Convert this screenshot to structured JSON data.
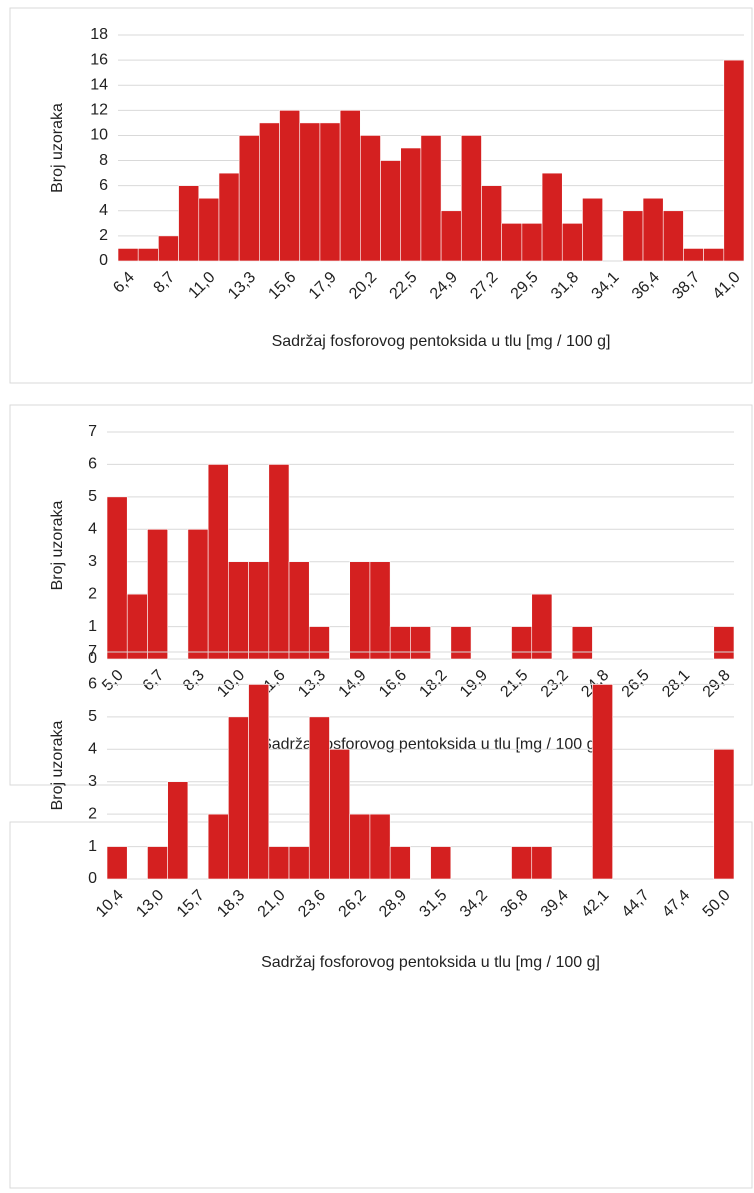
{
  "chart_data": [
    {
      "type": "bar",
      "xlabel": "Sadržaj fosforovog pentoksida u tlu [mg / 100 g]",
      "ylabel": "Broj uzoraka",
      "categories": [
        "6,4",
        null,
        "8,7",
        null,
        "11,0",
        null,
        "13,3",
        null,
        "15,6",
        null,
        "17,9",
        null,
        "20,2",
        null,
        "22,5",
        null,
        "24,9",
        null,
        "27,2",
        null,
        "29,5",
        null,
        "31,8",
        null,
        "34,1",
        null,
        "36,4",
        null,
        "38,7",
        null,
        "41,0"
      ],
      "values": [
        1,
        1,
        2,
        6,
        5,
        7,
        10,
        11,
        12,
        11,
        11,
        12,
        10,
        8,
        9,
        10,
        4,
        10,
        6,
        3,
        3,
        7,
        3,
        5,
        0,
        4,
        5,
        4,
        1,
        1,
        16
      ],
      "color": "#d42020",
      "ylim": [
        0,
        18
      ],
      "yticks": [
        0,
        2,
        4,
        6,
        8,
        10,
        12,
        14,
        16,
        18
      ],
      "grid": true
    },
    {
      "type": "bar",
      "xlabel": "Sadržaj fosforovog pentoksida u tlu [mg / 100 g]",
      "ylabel": "Broj uzoraka",
      "categories": [
        "5,0",
        null,
        "6,7",
        null,
        "8,3",
        null,
        "10,0",
        null,
        "11,6",
        null,
        "13,3",
        null,
        "14,9",
        null,
        "16,6",
        null,
        "18,2",
        null,
        "19,9",
        null,
        "21,5",
        null,
        "23,2",
        null,
        "24,8",
        null,
        "26,5",
        null,
        "28,1",
        null,
        "29,8"
      ],
      "values": [
        5,
        2,
        4,
        0,
        4,
        6,
        3,
        3,
        6,
        3,
        1,
        0,
        3,
        3,
        1,
        1,
        0,
        1,
        0,
        0,
        1,
        2,
        0,
        1,
        0,
        0,
        0,
        0,
        0,
        0,
        1
      ],
      "color": "#d42020",
      "ylim": [
        0,
        7
      ],
      "yticks": [
        0,
        1,
        2,
        3,
        4,
        5,
        6,
        7
      ],
      "grid": true
    },
    {
      "type": "bar",
      "xlabel": "Sadržaj fosforovog pentoksida u tlu [mg / 100 g]",
      "ylabel": "Broj uzoraka",
      "categories": [
        "10,4",
        null,
        "13,0",
        null,
        "15,7",
        null,
        "18,3",
        null,
        "21,0",
        null,
        "23,6",
        null,
        "26,2",
        null,
        "28,9",
        null,
        "31,5",
        null,
        "34,2",
        null,
        "36,8",
        null,
        "39,4",
        null,
        "42,1",
        null,
        "44,7",
        null,
        "47,4",
        null,
        "50,0"
      ],
      "values": [
        1,
        0,
        1,
        3,
        0,
        2,
        5,
        6,
        1,
        1,
        5,
        4,
        2,
        2,
        1,
        0,
        1,
        0,
        0,
        0,
        1,
        1,
        0,
        0,
        6,
        0,
        0,
        0,
        0,
        0,
        4
      ],
      "color": "#d42020",
      "ylim": [
        0,
        7
      ],
      "yticks": [
        0,
        1,
        2,
        3,
        4,
        5,
        6,
        7
      ],
      "grid": true
    }
  ]
}
